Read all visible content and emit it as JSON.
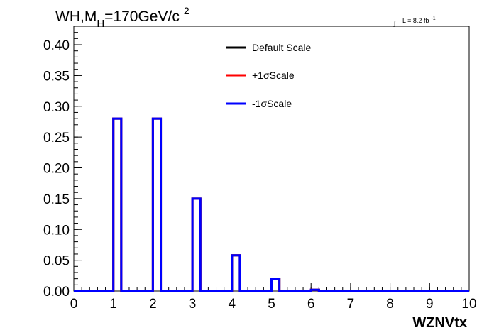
{
  "chart_data": {
    "type": "histogram",
    "title_main": "WH,M",
    "title_sub": "H",
    "title_rest": "=170GeV/c",
    "title_sup": "2",
    "lumi_integral": "∫",
    "lumi_text": "L = 8.2 fb",
    "lumi_sup": "-1",
    "xlabel": "WZNVtx",
    "xlim": [
      0,
      10
    ],
    "ylim": [
      0,
      0.43
    ],
    "x_ticks": [
      "0",
      "1",
      "2",
      "3",
      "4",
      "5",
      "6",
      "7",
      "8",
      "9",
      "10"
    ],
    "y_ticks": [
      "0.00",
      "0.05",
      "0.10",
      "0.15",
      "0.20",
      "0.25",
      "0.30",
      "0.35",
      "0.40"
    ],
    "bins": {
      "edges_low": [
        0,
        0.2,
        0.4,
        0.6,
        0.8,
        1.0,
        1.2,
        1.4,
        1.6,
        1.8,
        2.0,
        2.2,
        2.4,
        2.6,
        2.8,
        3.0,
        3.2,
        3.4,
        3.6,
        3.8,
        4.0,
        4.2,
        4.4,
        4.6,
        4.8,
        5.0,
        5.2,
        5.4,
        5.6,
        5.8,
        6.0,
        6.2,
        6.4,
        6.6,
        6.8,
        7.0,
        7.2,
        7.4,
        7.6,
        7.8,
        8.0,
        8.2,
        8.4,
        8.6,
        8.8,
        9.0,
        9.2,
        9.4,
        9.6,
        9.8
      ],
      "width": 0.2
    },
    "series": [
      {
        "name": "Default Scale",
        "color": "#000000",
        "values": [
          0,
          0,
          0,
          0,
          0,
          0.28,
          0,
          0,
          0,
          0,
          0.28,
          0,
          0,
          0,
          0,
          0.15,
          0,
          0,
          0,
          0,
          0.058,
          0,
          0,
          0,
          0,
          0.019,
          0,
          0,
          0,
          0,
          0.002,
          0,
          0,
          0,
          0,
          0,
          0,
          0,
          0,
          0,
          0,
          0,
          0,
          0,
          0,
          0,
          0,
          0,
          0,
          0
        ]
      },
      {
        "name": "+1σScale",
        "color": "#ff0000",
        "values": [
          0,
          0,
          0,
          0,
          0,
          0.28,
          0,
          0,
          0,
          0,
          0.28,
          0,
          0,
          0,
          0,
          0.15,
          0,
          0,
          0,
          0,
          0.058,
          0,
          0,
          0,
          0,
          0.019,
          0,
          0,
          0,
          0,
          0.002,
          0,
          0,
          0,
          0,
          0,
          0,
          0,
          0,
          0,
          0,
          0,
          0,
          0,
          0,
          0,
          0,
          0,
          0,
          0
        ]
      },
      {
        "name": "-1σScale",
        "color": "#0000ff",
        "values": [
          0,
          0,
          0,
          0,
          0,
          0.28,
          0,
          0,
          0,
          0,
          0.28,
          0,
          0,
          0,
          0,
          0.15,
          0,
          0,
          0,
          0,
          0.058,
          0,
          0,
          0,
          0,
          0.019,
          0,
          0,
          0,
          0,
          0.002,
          0,
          0,
          0,
          0,
          0,
          0,
          0,
          0,
          0,
          0,
          0,
          0,
          0,
          0,
          0,
          0,
          0,
          0,
          0
        ]
      }
    ],
    "legend": [
      "Default Scale",
      "+1σScale",
      "-1σScale"
    ],
    "legend_placement": "top-center",
    "grid": false
  }
}
